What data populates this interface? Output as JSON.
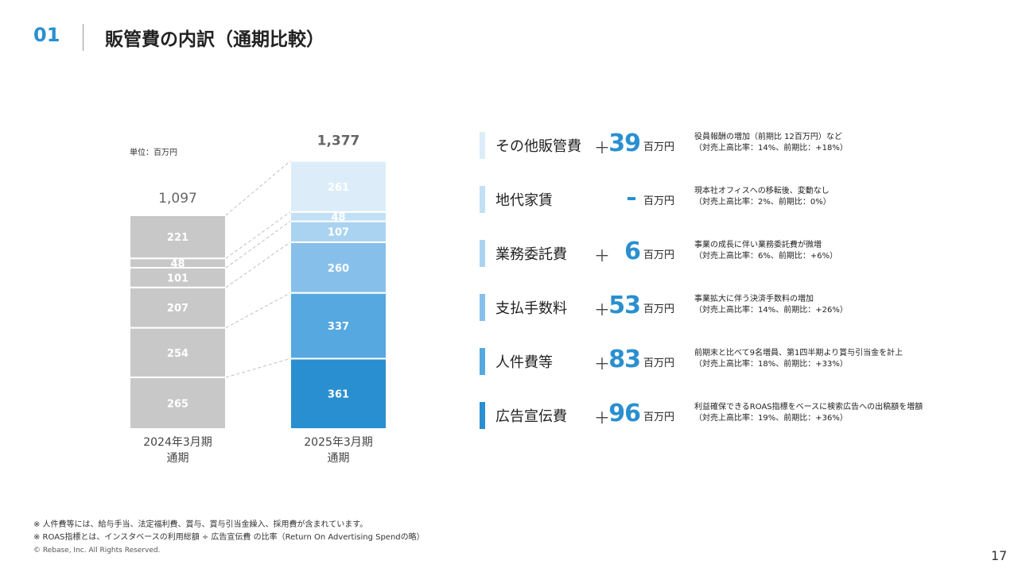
{
  "header": {
    "section_number": "01",
    "title": "販管費の内訳（通期比較）"
  },
  "unit_label": "単位：百万円",
  "chart_data": {
    "type": "bar",
    "stacked": true,
    "unit": "百万円",
    "categories": [
      {
        "line1": "2024年3月期",
        "line2": "通期"
      },
      {
        "line1": "2025年3月期",
        "line2": "通期"
      }
    ],
    "totals": [
      "1,097",
      "1,377"
    ],
    "series": [
      {
        "name": "広告宣伝費",
        "values": [
          265,
          361
        ],
        "labels": [
          "265",
          "361"
        ],
        "colors": [
          "#c8c8c8",
          "#2a8fd0"
        ]
      },
      {
        "name": "人件費等",
        "values": [
          254,
          337
        ],
        "labels": [
          "254",
          "337"
        ],
        "colors": [
          "#c8c8c8",
          "#55a8e0"
        ]
      },
      {
        "name": "支払手数料",
        "values": [
          207,
          260
        ],
        "labels": [
          "207",
          "260"
        ],
        "colors": [
          "#c8c8c8",
          "#86c0ea"
        ]
      },
      {
        "name": "業務委託費",
        "values": [
          101,
          107
        ],
        "labels": [
          "101",
          "107"
        ],
        "colors": [
          "#c8c8c8",
          "#aad3f1"
        ]
      },
      {
        "name": "地代家賃",
        "values": [
          48,
          48
        ],
        "labels": [
          "48",
          "48"
        ],
        "colors": [
          "#c8c8c8",
          "#c2e0f5"
        ]
      },
      {
        "name": "その他販管費",
        "values": [
          221,
          261
        ],
        "labels": [
          "221",
          "261"
        ],
        "colors": [
          "#c8c8c8",
          "#dcedf9"
        ]
      }
    ],
    "total_colors": [
      "#666666",
      "#2a8fd0"
    ],
    "ylim": [
      0,
      1377
    ]
  },
  "breakdown": [
    {
      "name": "その他販管費",
      "sign": "＋",
      "value": "39",
      "unit": "百万円",
      "desc1": "役員報酬の増加（前期比 12百万円）など",
      "desc2": "（対売上高比率：14%、前期比：+18%）",
      "color": "#dcedf9"
    },
    {
      "name": "地代家賃",
      "sign": "",
      "value": "",
      "unit": "百万円",
      "desc1": "現本社オフィスへの移転後、変動なし",
      "desc2": "（対売上高比率：2%、前期比：0%）",
      "color": "#c2e0f5"
    },
    {
      "name": "業務委託費",
      "sign": "＋",
      "value": "6",
      "unit": "百万円",
      "desc1": "事業の成長に伴い業務委託費が微増",
      "desc2": "（対売上高比率：6%、前期比：+6%）",
      "color": "#aad3f1"
    },
    {
      "name": "支払手数料",
      "sign": "＋",
      "value": "53",
      "unit": "百万円",
      "desc1": "事業拡大に伴う決済手数料の増加",
      "desc2": "（対売上高比率：14%、前期比：+26%）",
      "color": "#86c0ea"
    },
    {
      "name": "人件費等",
      "sign": "＋",
      "value": "83",
      "unit": "百万円",
      "desc1": "前期末と比べて9名増員、第1四半期より賞与引当金を計上",
      "desc2": "（対売上高比率：18%、前期比：+33%）",
      "color": "#55a8e0"
    },
    {
      "name": "広告宣伝費",
      "sign": "＋",
      "value": "96",
      "unit": "百万円",
      "desc1": "利益確保できるROAS指標をベースに検索広告への出稿額を増額",
      "desc2": "（対売上高比率：19%、前期比：+36%）",
      "color": "#2a8fd0"
    }
  ],
  "footer": {
    "note1": "※ 人件費等には、給与手当、法定福利費、賞与、賞与引当金繰入、採用費が含まれています。",
    "note2": "※ ROAS指標とは、インスタベースの利用総額 ÷ 広告宣伝費 の比率（Return On Advertising Spendの略）",
    "copyright": "© Rebase, Inc. All Rights Reserved.",
    "page_number": "17"
  }
}
